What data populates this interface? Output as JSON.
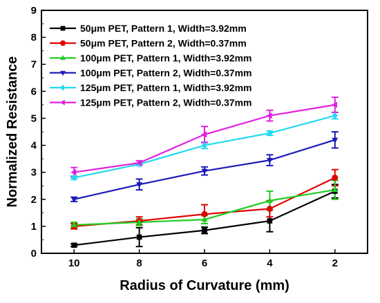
{
  "chart_data": {
    "type": "line",
    "xlabel": "Radius of Curvature (mm)",
    "ylabel": "Normalized Resistance",
    "x": [
      10,
      8,
      6,
      4,
      2
    ],
    "xlim": [
      11,
      1
    ],
    "ylim": [
      0,
      9
    ],
    "x_reversed": true,
    "xticks": [
      10,
      8,
      6,
      4,
      2
    ],
    "yticks": [
      0,
      1,
      2,
      3,
      4,
      5,
      6,
      7,
      8,
      9
    ],
    "legend_position": "top-left",
    "grid": false,
    "series": [
      {
        "name": "50μm PET, Pattern 1, Width=3.92mm",
        "color": "#000000",
        "marker": "square",
        "values": [
          0.3,
          0.6,
          0.85,
          1.2,
          2.3
        ],
        "errors": [
          0.05,
          0.35,
          0.12,
          0.4,
          0.25
        ]
      },
      {
        "name": "50μm PET, Pattern 2, Width=0.37mm",
        "color": "#e00000",
        "marker": "circle",
        "values": [
          1.0,
          1.2,
          1.45,
          1.65,
          2.8
        ],
        "errors": [
          0.1,
          0.15,
          0.35,
          0.3,
          0.3
        ]
      },
      {
        "name": "100μm PET, Pattern 1, Width=3.92mm",
        "color": "#22cc22",
        "marker": "triangle-up",
        "values": [
          1.05,
          1.15,
          1.25,
          1.95,
          2.35
        ],
        "errors": [
          0.1,
          0.12,
          0.15,
          0.35,
          0.35
        ]
      },
      {
        "name": "100μm PET, Pattern 2, Width=0.37mm",
        "color": "#1a1ab8",
        "marker": "triangle-down",
        "values": [
          2.0,
          2.55,
          3.05,
          3.45,
          4.2
        ],
        "errors": [
          0.08,
          0.2,
          0.15,
          0.2,
          0.3
        ]
      },
      {
        "name": "125μm PET, Pattern 1, Width=3.92mm",
        "color": "#22d8f0",
        "marker": "diamond",
        "values": [
          2.8,
          3.3,
          4.0,
          4.45,
          5.1
        ],
        "errors": [
          0.06,
          0.05,
          0.12,
          0.08,
          0.12
        ]
      },
      {
        "name": "125μm PET, Pattern 2, Width=0.37mm",
        "color": "#e020e0",
        "marker": "triangle-left",
        "values": [
          3.0,
          3.35,
          4.4,
          5.1,
          5.5
        ],
        "errors": [
          0.18,
          0.08,
          0.3,
          0.2,
          0.28
        ]
      }
    ]
  }
}
